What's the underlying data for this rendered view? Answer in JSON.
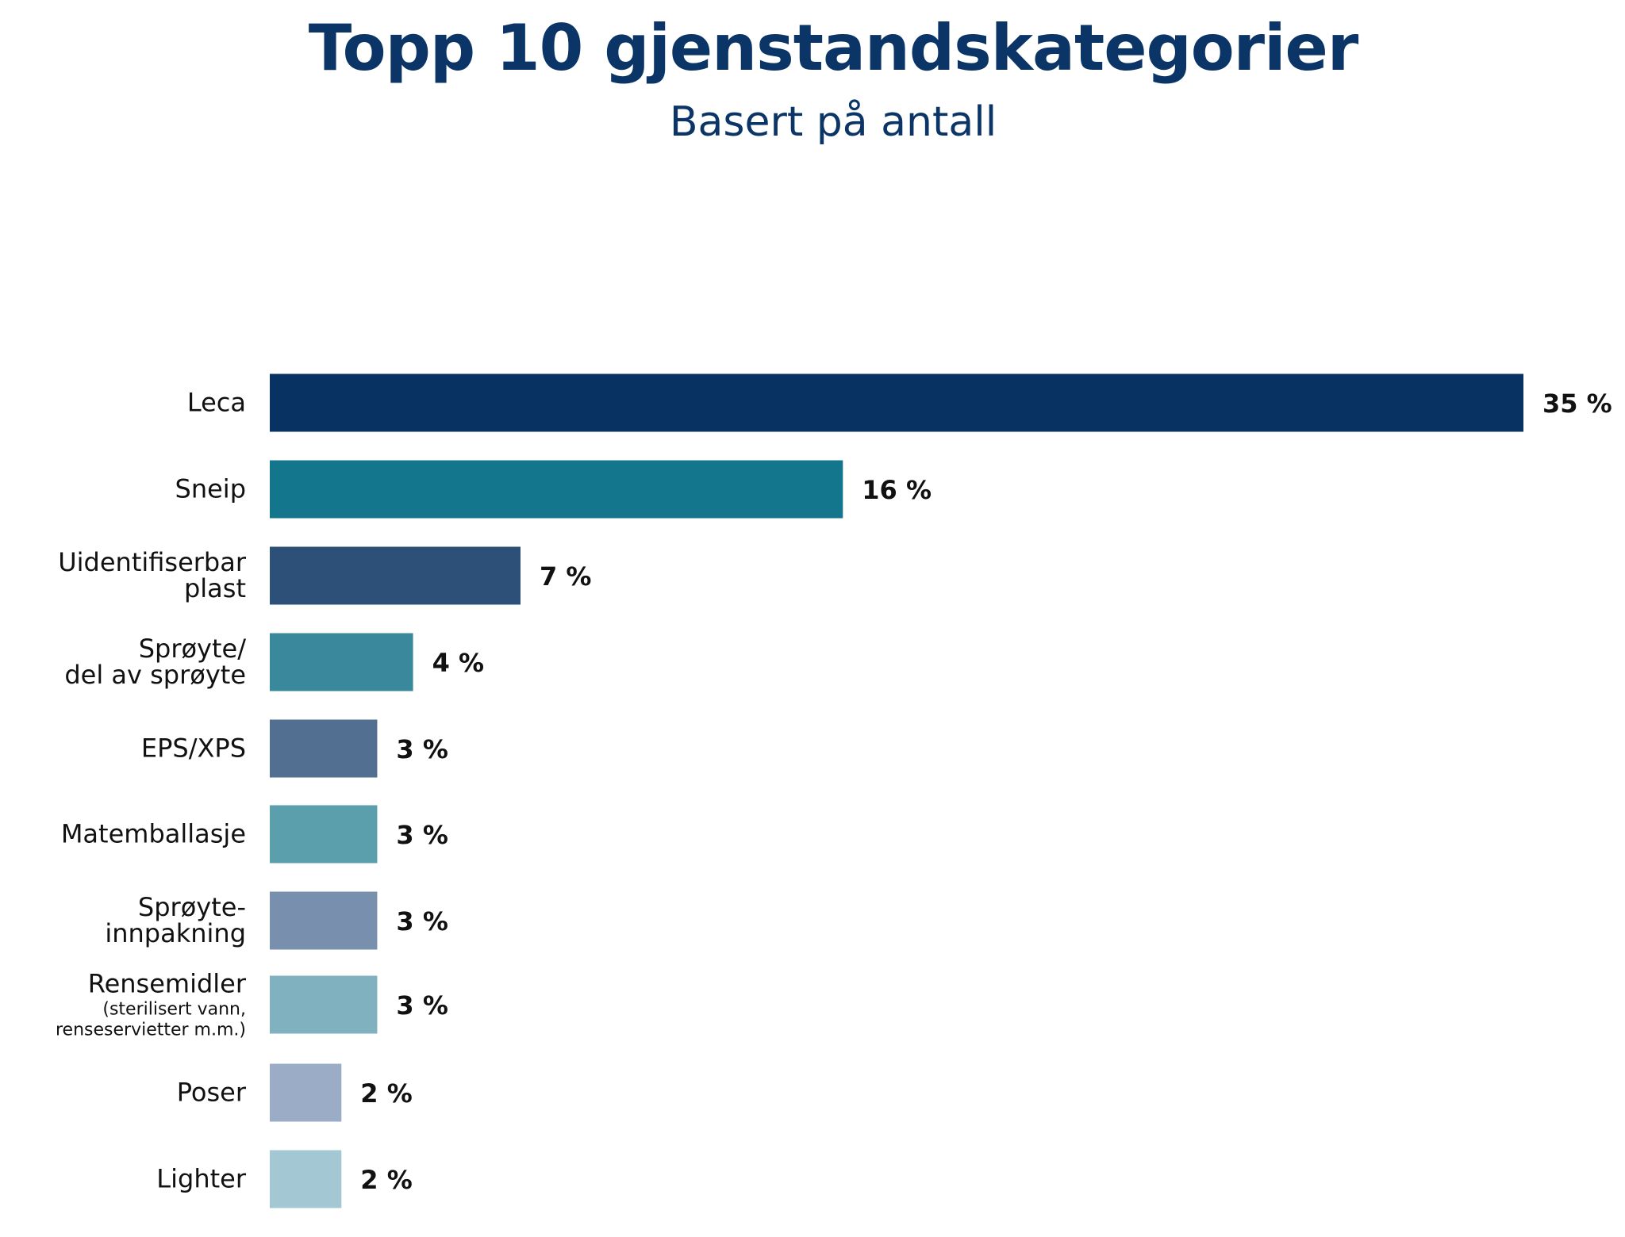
{
  "chart_data": {
    "type": "bar",
    "orientation": "horizontal",
    "title": "Topp 10 gjenstandskategorier",
    "subtitle": "Basert på antall",
    "xlabel": "",
    "ylabel": "",
    "xlim": [
      0,
      35
    ],
    "grid": false,
    "legend": "none",
    "unit": "%",
    "categories": [
      {
        "lines": [
          "Leca"
        ],
        "sub": []
      },
      {
        "lines": [
          "Sneip"
        ],
        "sub": []
      },
      {
        "lines": [
          "Uidentifiserbar",
          "plast"
        ],
        "sub": []
      },
      {
        "lines": [
          "Sprøyte/",
          "del av sprøyte"
        ],
        "sub": []
      },
      {
        "lines": [
          "EPS/XPS"
        ],
        "sub": []
      },
      {
        "lines": [
          "Matemballasje"
        ],
        "sub": []
      },
      {
        "lines": [
          "Sprøyte-",
          "innpakning"
        ],
        "sub": []
      },
      {
        "lines": [
          "Rensemidler"
        ],
        "sub": [
          "(sterilisert vann,",
          "renseservietter m.m.)"
        ]
      },
      {
        "lines": [
          "Poser"
        ],
        "sub": []
      },
      {
        "lines": [
          "Lighter"
        ],
        "sub": []
      }
    ],
    "values": [
      35,
      16,
      7,
      4,
      3,
      3,
      3,
      3,
      2,
      2
    ],
    "value_labels": [
      "35 %",
      "16 %",
      "7 %",
      "4 %",
      "3 %",
      "3 %",
      "3 %",
      "3 %",
      "2 %",
      "2 %"
    ],
    "colors": [
      "#083262",
      "#13768c",
      "#2d5079",
      "#39889b",
      "#526f92",
      "#5b9eac",
      "#798fae",
      "#7fb1bf",
      "#9badc6",
      "#a3c8d3"
    ]
  }
}
